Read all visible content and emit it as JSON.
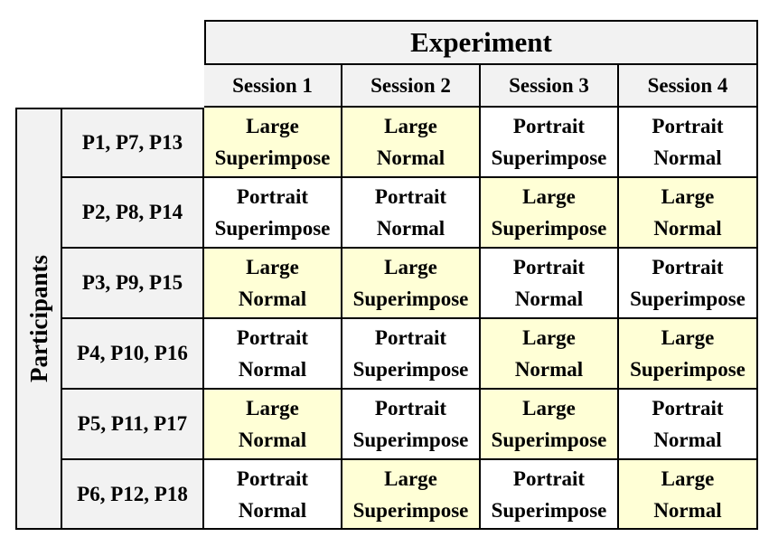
{
  "header": {
    "title": "Experiment",
    "sessions": [
      "Session 1",
      "Session 2",
      "Session 3",
      "Session 4"
    ]
  },
  "side_label": "Participants",
  "colors": {
    "header_bg": "#f2f2f2",
    "large_bg": "#ffffd6",
    "portrait_bg": "#ffffff",
    "border": "#000000"
  },
  "rows": [
    {
      "group": "P1, P7, P13",
      "cells": [
        {
          "line1": "Large",
          "line2": "Superimpose",
          "highlight": true
        },
        {
          "line1": "Large",
          "line2": "Normal",
          "highlight": true
        },
        {
          "line1": "Portrait",
          "line2": "Superimpose",
          "highlight": false
        },
        {
          "line1": "Portrait",
          "line2": "Normal",
          "highlight": false
        }
      ]
    },
    {
      "group": "P2, P8, P14",
      "cells": [
        {
          "line1": "Portrait",
          "line2": "Superimpose",
          "highlight": false
        },
        {
          "line1": "Portrait",
          "line2": "Normal",
          "highlight": false
        },
        {
          "line1": "Large",
          "line2": "Superimpose",
          "highlight": true
        },
        {
          "line1": "Large",
          "line2": "Normal",
          "highlight": true
        }
      ]
    },
    {
      "group": "P3, P9, P15",
      "cells": [
        {
          "line1": "Large",
          "line2": "Normal",
          "highlight": true
        },
        {
          "line1": "Large",
          "line2": "Superimpose",
          "highlight": true
        },
        {
          "line1": "Portrait",
          "line2": "Normal",
          "highlight": false
        },
        {
          "line1": "Portrait",
          "line2": "Superimpose",
          "highlight": false
        }
      ]
    },
    {
      "group": "P4, P10, P16",
      "cells": [
        {
          "line1": "Portrait",
          "line2": "Normal",
          "highlight": false
        },
        {
          "line1": "Portrait",
          "line2": "Superimpose",
          "highlight": false
        },
        {
          "line1": "Large",
          "line2": "Normal",
          "highlight": true
        },
        {
          "line1": "Large",
          "line2": "Superimpose",
          "highlight": true
        }
      ]
    },
    {
      "group": "P5, P11, P17",
      "cells": [
        {
          "line1": "Large",
          "line2": "Normal",
          "highlight": true
        },
        {
          "line1": "Portrait",
          "line2": "Superimpose",
          "highlight": false
        },
        {
          "line1": "Large",
          "line2": "Superimpose",
          "highlight": true
        },
        {
          "line1": "Portrait",
          "line2": "Normal",
          "highlight": false
        }
      ]
    },
    {
      "group": "P6, P12, P18",
      "cells": [
        {
          "line1": "Portrait",
          "line2": "Normal",
          "highlight": false
        },
        {
          "line1": "Large",
          "line2": "Superimpose",
          "highlight": true
        },
        {
          "line1": "Portrait",
          "line2": "Superimpose",
          "highlight": false
        },
        {
          "line1": "Large",
          "line2": "Normal",
          "highlight": true
        }
      ]
    }
  ]
}
